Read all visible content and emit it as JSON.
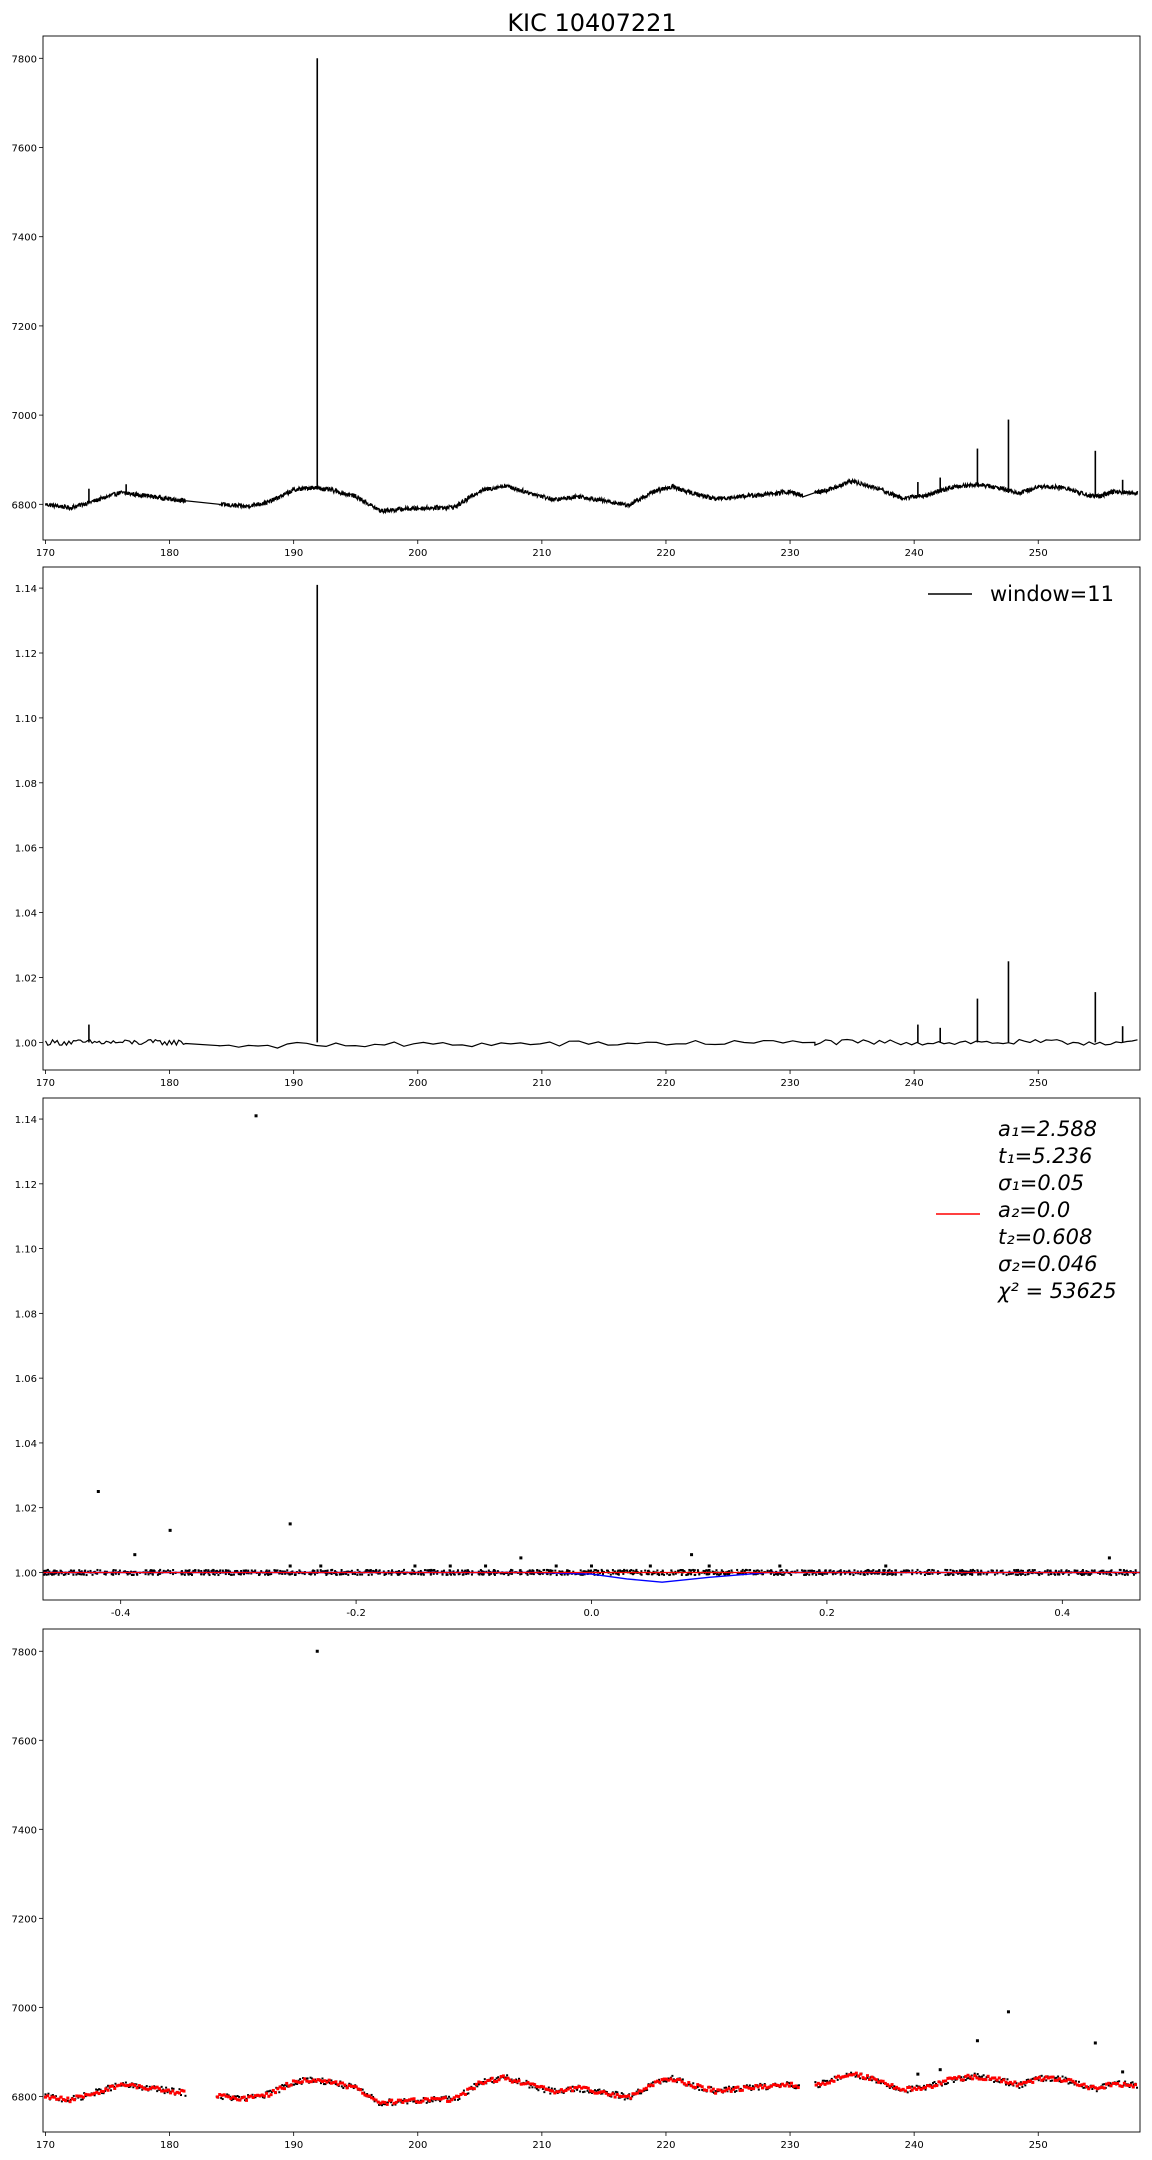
{
  "figure_title": "KIC 10407221",
  "chart_data": [
    {
      "type": "line",
      "title": "",
      "xlabel": "",
      "ylabel": "",
      "xlim": [
        169.8,
        258.2
      ],
      "ylim": [
        6720,
        7850
      ],
      "xticks": [
        170,
        180,
        190,
        200,
        210,
        220,
        230,
        240,
        250
      ],
      "yticks": [
        6800,
        7000,
        7200,
        7400,
        7600,
        7800
      ],
      "grid": false,
      "legend": null,
      "series": [
        {
          "color": "#000000",
          "x": [
            170,
            172,
            174,
            176,
            178,
            180,
            181.3,
            184,
            186,
            188,
            190,
            191.5,
            193,
            195,
            197,
            199,
            201,
            203,
            205,
            207,
            209,
            211,
            213,
            215,
            217,
            219,
            220.5,
            222,
            224,
            226,
            228,
            230,
            231,
            232,
            233,
            235,
            237,
            239,
            241,
            243,
            245,
            247,
            248.5,
            250,
            252,
            254,
            255,
            256,
            258
          ],
          "y": [
            6800,
            6792,
            6808,
            6826,
            6820,
            6812,
            6808,
            6800,
            6795,
            6805,
            6832,
            6838,
            6832,
            6818,
            6785,
            6790,
            6792,
            6794,
            6830,
            6842,
            6826,
            6810,
            6818,
            6808,
            6798,
            6828,
            6840,
            6826,
            6812,
            6818,
            6822,
            6828,
            6820,
            6826,
            6832,
            6852,
            6836,
            6814,
            6820,
            6838,
            6845,
            6836,
            6825,
            6840,
            6838,
            6820,
            6818,
            6828,
            6825
          ]
        }
      ],
      "spikes": {
        "color": "#000000",
        "x": [
          173.5,
          176.5,
          191.9,
          240.3,
          242.1,
          245.1,
          247.6,
          254.6,
          256.8
        ],
        "y": [
          6835,
          6845,
          7800,
          6850,
          6860,
          6925,
          6990,
          6920,
          6855
        ]
      }
    },
    {
      "type": "line",
      "title": "",
      "xlabel": "",
      "ylabel": "",
      "xlim": [
        169.8,
        258.2
      ],
      "ylim": [
        0.9915,
        1.1465
      ],
      "xticks": [
        170,
        180,
        190,
        200,
        210,
        220,
        230,
        240,
        250
      ],
      "yticks": [
        1.0,
        1.02,
        1.04,
        1.06,
        1.08,
        1.1,
        1.12,
        1.14
      ],
      "grid": false,
      "legend": {
        "position": "top-right",
        "entries": [
          {
            "label": "window=11",
            "color": "#000000"
          }
        ]
      },
      "series": [
        {
          "name": "window=11",
          "color": "#000000",
          "x": [
            170,
            181.3,
            184,
            231,
            232,
            258
          ],
          "y": [
            1.0,
            1.0,
            0.999,
            1.0,
            1.0,
            1.0
          ]
        }
      ],
      "spikes": {
        "color": "#000000",
        "x": [
          173.5,
          191.9,
          240.3,
          242.1,
          245.1,
          247.6,
          254.6,
          256.8
        ],
        "y": [
          1.0055,
          1.141,
          1.0055,
          1.0045,
          1.0135,
          1.025,
          1.0155,
          1.005
        ]
      }
    },
    {
      "type": "scatter",
      "title": "",
      "xlabel": "",
      "ylabel": "",
      "xlim": [
        -0.466,
        0.466
      ],
      "ylim": [
        0.9915,
        1.1465
      ],
      "xticks": [
        -0.4,
        -0.2,
        0.0,
        0.2,
        0.4
      ],
      "yticks": [
        1.0,
        1.02,
        1.04,
        1.06,
        1.08,
        1.1,
        1.12,
        1.14
      ],
      "grid": false,
      "legend": {
        "position": "top-right",
        "entries": [
          {
            "color": "#ff0000"
          }
        ],
        "text_lines": [
          "a₁=2.588",
          "t₁=5.236",
          "σ₁=0.05",
          "a₂=0.0",
          "t₂=0.608",
          "σ₂=0.046",
          "χ² = 53625"
        ]
      },
      "outliers": {
        "color": "#000000",
        "x": [
          -0.285,
          -0.419,
          -0.388,
          -0.358,
          -0.256,
          -0.06,
          0.085,
          0.44,
          -0.256,
          -0.23,
          -0.15,
          -0.12,
          -0.09,
          -0.03,
          0.0,
          0.05,
          0.1,
          0.16,
          0.25
        ],
        "y": [
          1.141,
          1.025,
          1.0055,
          1.013,
          1.015,
          1.0045,
          1.0055,
          1.0045,
          1.002,
          1.002,
          1.002,
          1.002,
          1.002,
          1.002,
          1.002,
          1.002,
          1.002,
          1.002,
          1.002
        ]
      },
      "fit_curve": {
        "color": "#0000ff",
        "x": [
          -0.466,
          -0.3,
          -0.2,
          -0.1,
          -0.05,
          0.0,
          0.03,
          0.06,
          0.1,
          0.15,
          0.2,
          0.466
        ],
        "y": [
          1.0,
          1.0,
          1.0,
          1.0,
          1.0,
          0.9995,
          0.998,
          0.997,
          0.9985,
          1.0,
          1.0,
          1.0
        ]
      },
      "baseline": {
        "color": "#ff0000",
        "y": 1.0
      }
    },
    {
      "type": "scatter",
      "title": "",
      "xlabel": "",
      "ylabel": "",
      "xlim": [
        169.8,
        258.2
      ],
      "ylim": [
        6720,
        7850
      ],
      "xticks": [
        170,
        180,
        190,
        200,
        210,
        220,
        230,
        240,
        250
      ],
      "yticks": [
        6800,
        7000,
        7200,
        7400,
        7600,
        7800
      ],
      "grid": false,
      "legend": null,
      "series": [
        {
          "color": "#ff0000",
          "x": [
            170,
            172,
            174,
            176,
            178,
            180,
            181.3,
            184,
            186,
            188,
            190,
            191.5,
            193,
            195,
            197,
            199,
            201,
            203,
            205,
            207,
            209,
            211,
            213,
            215,
            217,
            219,
            220.5,
            222,
            224,
            226,
            228,
            230,
            231,
            232,
            233,
            235,
            237,
            239,
            241,
            243,
            245,
            247,
            248.5,
            250,
            252,
            254,
            255,
            256,
            258
          ],
          "y": [
            6800,
            6792,
            6808,
            6826,
            6820,
            6812,
            6808,
            6800,
            6795,
            6805,
            6832,
            6838,
            6832,
            6818,
            6785,
            6790,
            6792,
            6794,
            6830,
            6842,
            6826,
            6810,
            6818,
            6808,
            6798,
            6828,
            6840,
            6826,
            6812,
            6818,
            6822,
            6828,
            6820,
            6826,
            6832,
            6852,
            6836,
            6814,
            6820,
            6838,
            6845,
            6836,
            6825,
            6840,
            6838,
            6820,
            6818,
            6828,
            6825
          ]
        }
      ],
      "outliers": {
        "color": "#000000",
        "x": [
          191.9,
          247.6,
          245.1,
          254.6,
          240.3,
          242.1,
          256.8
        ],
        "y": [
          7800,
          6990,
          6925,
          6920,
          6850,
          6860,
          6855
        ]
      }
    }
  ]
}
